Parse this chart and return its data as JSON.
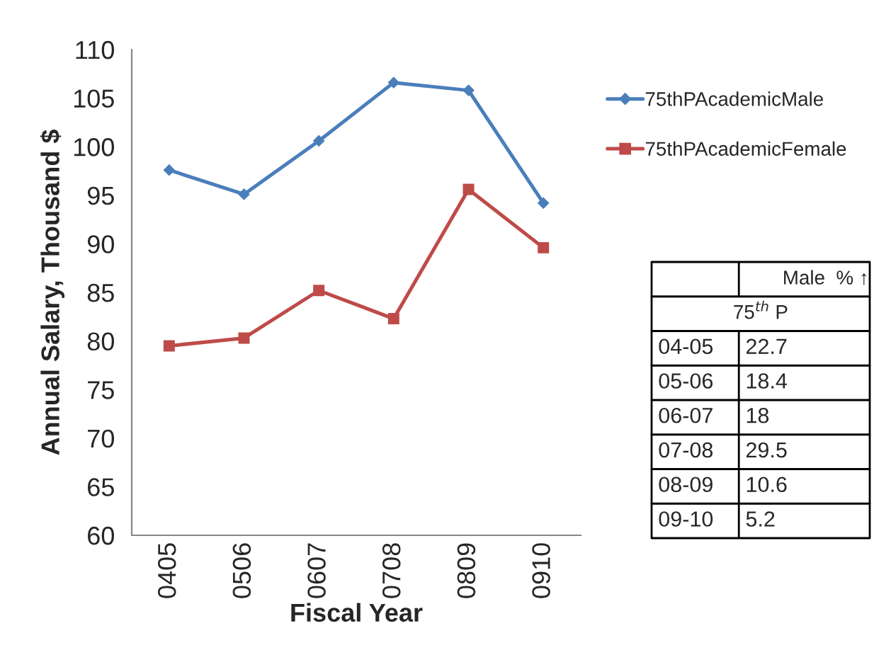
{
  "chart_data": {
    "type": "line",
    "xlabel": "Fiscal Year",
    "ylabel": "Annual Salary, Thousand $",
    "categories": [
      "0405",
      "0506",
      "0607",
      "0708",
      "0809",
      "0910"
    ],
    "series": [
      {
        "name": "75thPAcademicMale",
        "color": "#4a7ebb",
        "marker": "diamond",
        "values": [
          97.6,
          95.1,
          100.6,
          106.6,
          105.8,
          94.2
        ]
      },
      {
        "name": "75thPAcademicFemale",
        "color": "#be4b48",
        "marker": "square",
        "values": [
          79.5,
          80.3,
          85.2,
          82.3,
          95.6,
          89.6
        ]
      }
    ],
    "ylim": [
      60,
      110
    ],
    "yticks": [
      60,
      65,
      70,
      75,
      80,
      85,
      90,
      95,
      100,
      105,
      110
    ],
    "grid": false,
    "legend": "right",
    "line_style": "solid",
    "annotations": [
      "Male  % ↑",
      "75$^{th}$ P",
      "04-05",
      "22.7",
      "05-06",
      "18.4",
      "06-07",
      "18",
      "07-08",
      "29.5",
      "08-09",
      "10.6",
      "09-10",
      "5.2"
    ]
  }
}
